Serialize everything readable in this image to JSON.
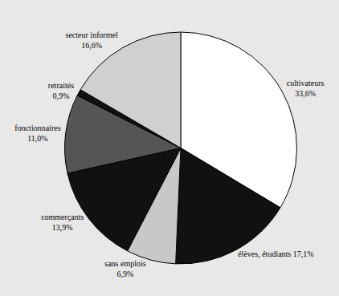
{
  "chart_data": {
    "type": "pie",
    "categories": [
      "cultivateurs",
      "élèves, étudiants",
      "sans emplois",
      "commerçants",
      "fonctionnaires",
      "retraités",
      "secteur informel"
    ],
    "values": [
      33.6,
      17.1,
      6.9,
      13.9,
      11.0,
      0.9,
      16.6
    ],
    "value_labels": [
      "cultivateurs\n33,6%",
      "élèves, étudiants 17,1%",
      "sans emplois\n6,9%",
      "commerçants\n13,9%",
      "fonctionnaires\n11,0%",
      "retraités\n0,9%",
      "secteur informel\n16,6%"
    ],
    "colors": [
      "#ffffff",
      "#111111",
      "#c8c8c8",
      "#111111",
      "#555555",
      "#111111",
      "#d0d0d0"
    ],
    "data_labels": true,
    "legend": false
  }
}
